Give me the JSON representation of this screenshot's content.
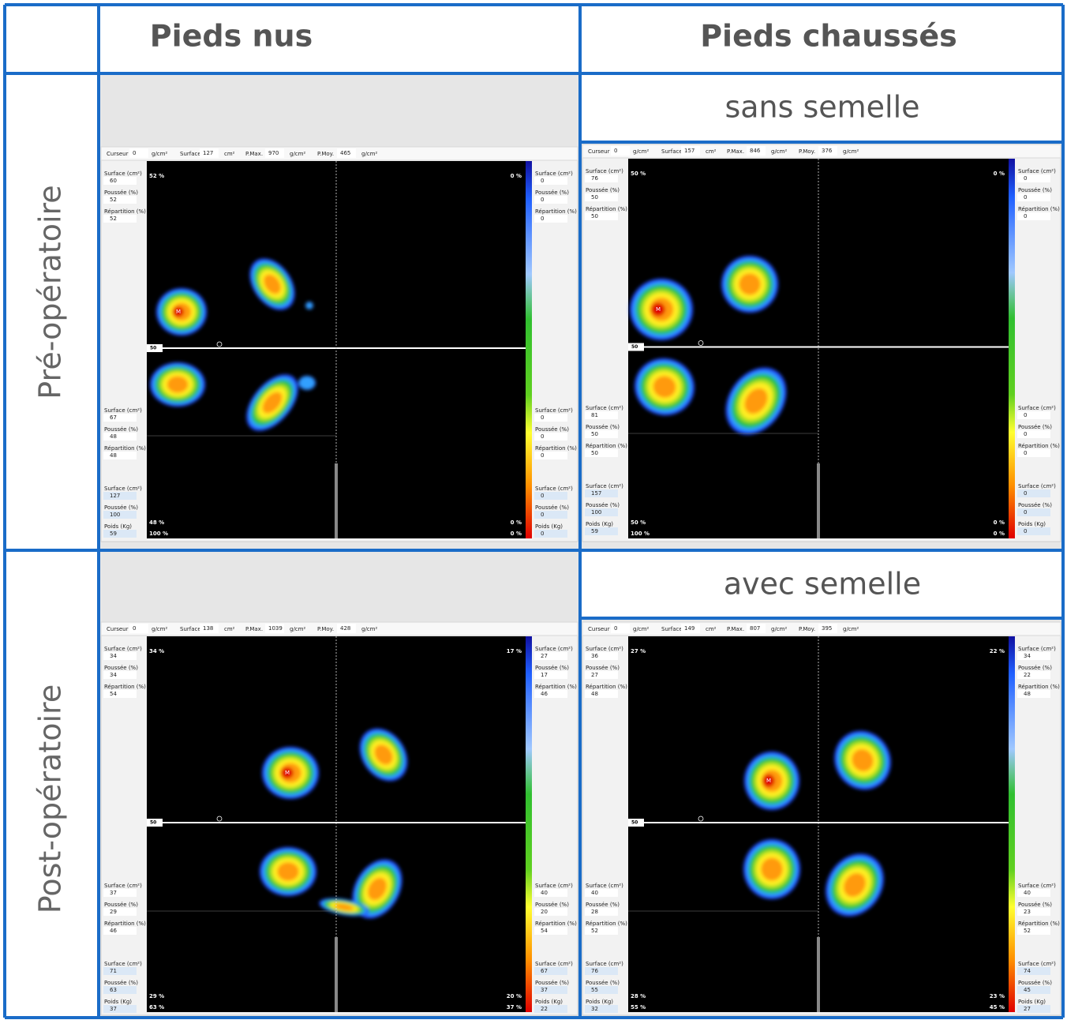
{
  "header": {
    "col1": "Pieds nus",
    "col2": "Pieds chaussés"
  },
  "rows": [
    "Pré-opératoire",
    "Post-opératoire"
  ],
  "subheaders": [
    "sans semelle",
    "avec semelle"
  ],
  "labels": {
    "cursor": "Curseur",
    "surface": "Surface",
    "pmax": "P.Max.",
    "pmoy": "P.Moy.",
    "unit_pressure": "g/cm²",
    "unit_area": "cm²",
    "surface_cm2": "Surface (cm²)",
    "poussee": "Poussée (%)",
    "repartition": "Répartition (%)",
    "poids": "Poids (Kg)",
    "midline": "50",
    "max_marker": "M"
  },
  "panels": [
    {
      "toolbar": {
        "cursor": 0,
        "surface": 127,
        "pmax": 970,
        "pmoy": 465
      },
      "left": {
        "top": {
          "surface": 60,
          "poussee": 52,
          "repartition": 52
        },
        "bottom": {
          "surface": 67,
          "poussee": 48,
          "repartition": 48
        },
        "total": {
          "surface": 127,
          "poussee": 100,
          "poids": 59
        }
      },
      "right": {
        "top": {
          "surface": 0,
          "poussee": 0,
          "repartition": 0
        },
        "bottom": {
          "surface": 0,
          "poussee": 0,
          "repartition": 0
        },
        "total": {
          "surface": 0,
          "poussee": 0,
          "poids": 0
        }
      },
      "percents": {
        "top_left": "52 %",
        "top_right": "0 %",
        "bottom_left": "48 %",
        "bottom_right": "0 %",
        "total_left": "100 %",
        "total_right": "0 %"
      }
    },
    {
      "toolbar": {
        "cursor": 0,
        "surface": 157,
        "pmax": 846,
        "pmoy": 376
      },
      "left": {
        "top": {
          "surface": 76,
          "poussee": 50,
          "repartition": 50
        },
        "bottom": {
          "surface": 81,
          "poussee": 50,
          "repartition": 50
        },
        "total": {
          "surface": 157,
          "poussee": 100,
          "poids": 59
        }
      },
      "right": {
        "top": {
          "surface": 0,
          "poussee": 0,
          "repartition": 0
        },
        "bottom": {
          "surface": 0,
          "poussee": 0,
          "repartition": 0
        },
        "total": {
          "surface": 0,
          "poussee": 0,
          "poids": 0
        }
      },
      "percents": {
        "top_left": "50 %",
        "top_right": "0 %",
        "bottom_left": "50 %",
        "bottom_right": "0 %",
        "total_left": "100 %",
        "total_right": "0 %"
      }
    },
    {
      "toolbar": {
        "cursor": 0,
        "surface": 138,
        "pmax": 1039,
        "pmoy": 428
      },
      "left": {
        "top": {
          "surface": 34,
          "poussee": 34,
          "repartition": 54
        },
        "bottom": {
          "surface": 37,
          "poussee": 29,
          "repartition": 46
        },
        "total": {
          "surface": 71,
          "poussee": 63,
          "poids": 37
        }
      },
      "right": {
        "top": {
          "surface": 27,
          "poussee": 17,
          "repartition": 46
        },
        "bottom": {
          "surface": 40,
          "poussee": 20,
          "repartition": 54
        },
        "total": {
          "surface": 67,
          "poussee": 37,
          "poids": 22
        }
      },
      "percents": {
        "top_left": "34 %",
        "top_right": "17 %",
        "bottom_left": "29 %",
        "bottom_right": "20 %",
        "total_left": "63 %",
        "total_right": "37 %"
      }
    },
    {
      "toolbar": {
        "cursor": 0,
        "surface": 149,
        "pmax": 807,
        "pmoy": 395
      },
      "left": {
        "top": {
          "surface": 36,
          "poussee": 27,
          "repartition": 48
        },
        "bottom": {
          "surface": 40,
          "poussee": 28,
          "repartition": 52
        },
        "total": {
          "surface": 76,
          "poussee": 55,
          "poids": 32
        }
      },
      "right": {
        "top": {
          "surface": 34,
          "poussee": 22,
          "repartition": 48
        },
        "bottom": {
          "surface": 40,
          "poussee": 23,
          "repartition": 52
        },
        "total": {
          "surface": 74,
          "poussee": 45,
          "poids": 27
        }
      },
      "percents": {
        "top_left": "27 %",
        "top_right": "22 %",
        "bottom_left": "28 %",
        "bottom_right": "23 %",
        "total_left": "55 %",
        "total_right": "45 %"
      }
    }
  ]
}
